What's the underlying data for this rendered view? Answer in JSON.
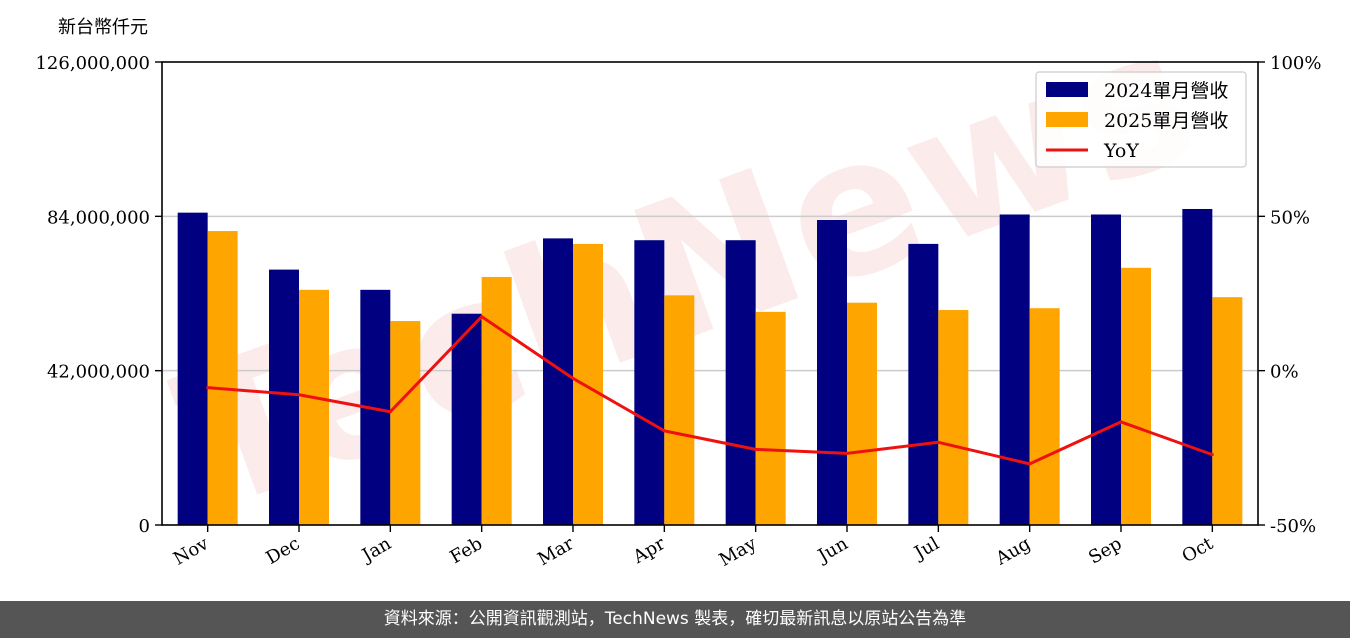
{
  "unit_label": "新台幣仟元",
  "watermark": "TechNews",
  "footer": "資料來源：公開資訊觀測站，TechNews 製表，確切最新訊息以原站公告為準",
  "colors": {
    "series_2024": "#000080",
    "series_2025": "#FFA500",
    "yoy": "#EE1111",
    "grid": "#CCCCCC",
    "footer_bg": "#555555"
  },
  "chart_data": {
    "type": "bar",
    "categories": [
      "Nov",
      "Dec",
      "Jan",
      "Feb",
      "Mar",
      "Apr",
      "May",
      "Jun",
      "Jul",
      "Aug",
      "Sep",
      "Oct"
    ],
    "series": [
      {
        "name": "2024單月營收",
        "values": [
          85000000,
          69500000,
          64000000,
          57500000,
          78000000,
          77500000,
          77500000,
          83000000,
          76500000,
          84500000,
          84500000,
          86000000
        ]
      },
      {
        "name": "2025單月營收",
        "values": [
          80000000,
          64000000,
          55500000,
          67500000,
          76500000,
          62500000,
          58000000,
          60500000,
          58500000,
          59000000,
          70000000,
          62000000
        ]
      }
    ],
    "line_series": {
      "name": "YoY",
      "axis": "right",
      "values": [
        -5.5,
        -7.8,
        -13.3,
        17.5,
        -2.5,
        -19.5,
        -25.5,
        -26.8,
        -23.2,
        -30.2,
        -16.6,
        -27.2
      ]
    },
    "y_left": {
      "ticks": [
        0,
        42000000,
        84000000,
        126000000
      ],
      "tick_labels": [
        "0",
        "42,000,000",
        "84,000,000",
        "126,000,000"
      ],
      "range": [
        0,
        126000000
      ]
    },
    "y_right": {
      "ticks": [
        -50,
        0,
        50,
        100
      ],
      "tick_labels": [
        "-50%",
        "0%",
        "50%",
        "100%"
      ],
      "range": [
        -50,
        100
      ]
    },
    "grid": "horizontal",
    "legend": "top-right"
  }
}
